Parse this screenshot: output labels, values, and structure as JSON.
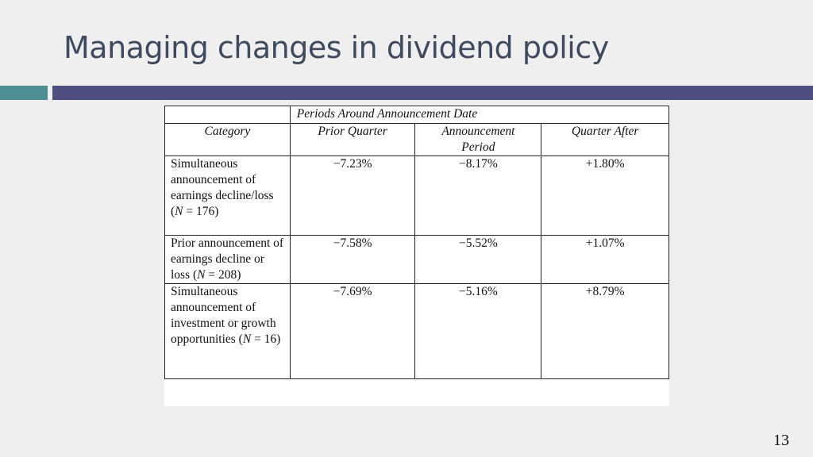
{
  "slide": {
    "title": "Managing changes in dividend policy",
    "page_number": "13"
  },
  "table": {
    "group_header": "Periods Around Announcement Date",
    "columns": [
      "Category",
      "Prior Quarter",
      "Announcement Period",
      "Quarter After"
    ],
    "rows": [
      {
        "category_pre": "Simultaneous announcement of earnings decline/loss (",
        "n_label": "N",
        "category_post": " = 176)",
        "prior": "−7.23%",
        "announcement": "−8.17%",
        "after": "+1.80%"
      },
      {
        "category_pre": "Prior announcement of earnings decline or loss (",
        "n_label": "N",
        "category_post": " = 208)",
        "prior": "−7.58%",
        "announcement": "−5.52%",
        "after": "+1.07%"
      },
      {
        "category_pre": "Simultaneous announcement of investment or growth opportunities (",
        "n_label": "N",
        "category_post": " = 16)",
        "prior": "−7.69%",
        "announcement": "−5.16%",
        "after": "+8.79%"
      }
    ]
  },
  "colors": {
    "title": "#3f4a5f",
    "bar_teal": "#4d8f93",
    "bar_navy": "#4d4d80",
    "background": "#efefef"
  }
}
